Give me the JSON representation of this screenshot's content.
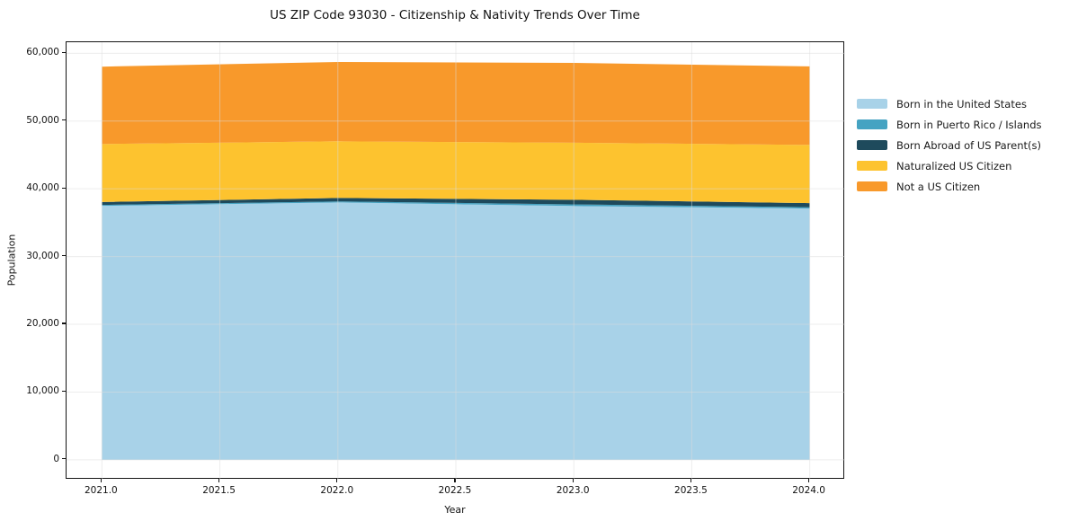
{
  "title": "US ZIP Code 93030 - Citizenship & Nativity Trends Over Time",
  "chart_data": {
    "type": "area",
    "stacked": true,
    "title": "US ZIP Code 93030 - Citizenship & Nativity Trends Over Time",
    "xlabel": "Year",
    "ylabel": "Population",
    "x": [
      2021,
      2022,
      2023,
      2024
    ],
    "series": [
      {
        "name": "Born in the United States",
        "color": "#a8d2e8",
        "values": [
          37480,
          37990,
          37460,
          37090
        ]
      },
      {
        "name": "Born in Puerto Rico / Islands",
        "color": "#45a3c2",
        "values": [
          140,
          150,
          240,
          190
        ]
      },
      {
        "name": "Born Abroad of US Parent(s)",
        "color": "#1e4a5c",
        "values": [
          430,
          510,
          680,
          610
        ]
      },
      {
        "name": "Naturalized US Citizen",
        "color": "#fdc32f",
        "values": [
          8560,
          8360,
          8420,
          8590
        ]
      },
      {
        "name": "Not a US Citizen",
        "color": "#f8992b",
        "values": [
          11420,
          11710,
          11790,
          11590
        ]
      }
    ],
    "stacked_totals": [
      58030,
      58720,
      58590,
      58070
    ],
    "xlim": [
      2020.85,
      2024.15
    ],
    "ylim": [
      -2935,
      61635
    ],
    "xticks": [
      2021.0,
      2021.5,
      2022.0,
      2022.5,
      2023.0,
      2023.5,
      2024.0
    ],
    "xtick_labels": [
      "2021.0",
      "2021.5",
      "2022.0",
      "2022.5",
      "2023.0",
      "2023.5",
      "2024.0"
    ],
    "yticks": [
      0,
      10000,
      20000,
      30000,
      40000,
      50000,
      60000
    ],
    "ytick_labels": [
      "0",
      "10,000",
      "20,000",
      "30,000",
      "40,000",
      "50,000",
      "60,000"
    ],
    "grid": true,
    "grid_color": "#dcdcdc",
    "legend_position": "center right, outside axes",
    "spine_color": "#141414"
  }
}
